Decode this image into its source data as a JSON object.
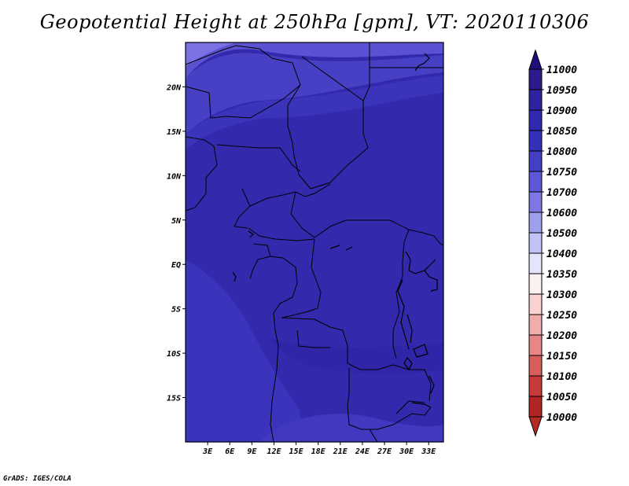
{
  "title": "Geopotential Height at 250hPa [gpm], VT: 2020110306",
  "footer": "GrADS: IGES/COLA",
  "map": {
    "lat_labels": [
      "20N",
      "15N",
      "10N",
      "5N",
      "EQ",
      "5S",
      "10S",
      "15S"
    ],
    "lon_labels": [
      "3E",
      "6E",
      "9E",
      "12E",
      "15E",
      "18E",
      "21E",
      "24E",
      "27E",
      "30E",
      "33E"
    ],
    "lat_values": [
      20,
      15,
      10,
      5,
      0,
      -5,
      -10,
      -15
    ],
    "lon_values": [
      3,
      6,
      9,
      12,
      15,
      18,
      21,
      24,
      27,
      30,
      33
    ],
    "extent": {
      "lon_min": 0,
      "lon_max": 35,
      "lat_min": -20,
      "lat_max": 25
    }
  },
  "colorbar": {
    "labels": [
      "11000",
      "10950",
      "10900",
      "10850",
      "10800",
      "10750",
      "10700",
      "10600",
      "10500",
      "10400",
      "10350",
      "10300",
      "10250",
      "10200",
      "10150",
      "10100",
      "10050",
      "10000"
    ],
    "colors": [
      "#2b1a8c",
      "#2d22a0",
      "#3028ae",
      "#3530b8",
      "#4440c6",
      "#5c58d6",
      "#7e78e6",
      "#9f9ff0",
      "#c2c2f8",
      "#e4e4fc",
      "#fdf0f0",
      "#fad2d2",
      "#f2acac",
      "#e68686",
      "#d85e5e",
      "#c83a3a",
      "#b22424",
      "#9e1a1a"
    ],
    "arrow_colors": {
      "top": "#200c7a",
      "bottom": "#b52a24"
    }
  }
}
